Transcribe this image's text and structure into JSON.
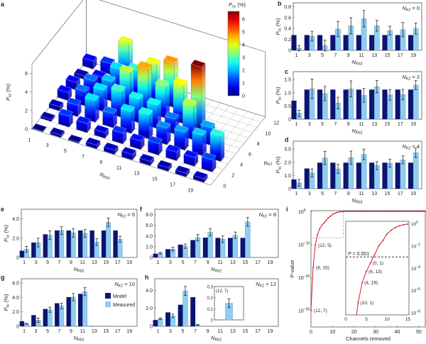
{
  "figure": {
    "panel_labels": [
      "a",
      "b",
      "c",
      "d",
      "e",
      "f",
      "g",
      "h",
      "i"
    ],
    "colors": {
      "model": "#0b1470",
      "measured": "#8fcdf2",
      "curve": "#d2202c",
      "axis": "#555555"
    }
  },
  "chart_data": [
    {
      "panel": "a",
      "type": "bar3d",
      "ylabel": {
        "base": "P",
        "sub": "sc",
        "suffix": " (%)"
      },
      "xlabel": {
        "base": "N",
        "sub": "Rb2"
      },
      "zlabel": {
        "base": "N",
        "sub": "K2"
      },
      "colorbar": {
        "title": {
          "base": "P",
          "sub": "sc",
          "suffix": " (%)"
        },
        "range": [
          0,
          6.6
        ],
        "ticks": [
          "0",
          "1",
          "2",
          "3",
          "4",
          "5",
          "6"
        ],
        "colormap": "jet"
      },
      "x_ticks": [
        "1",
        "3",
        "5",
        "7",
        "9",
        "11",
        "13",
        "15",
        "17",
        "19"
      ],
      "z_ticks": [
        "0",
        "2",
        "4",
        "6",
        "8",
        "10",
        "12"
      ],
      "y_ticks": [
        "0",
        "2",
        "4",
        "6"
      ],
      "x_values": [
        1,
        3,
        5,
        7,
        9,
        11,
        13,
        15,
        17,
        19
      ],
      "rows": [
        {
          "NK2": 0,
          "values": [
            0.04,
            0.26,
            0.09,
            0.39,
            0.45,
            0.58,
            0.45,
            0.36,
            0.38,
            0.4
          ]
        },
        {
          "NK2": 2,
          "values": [
            0.22,
            1.15,
            0.97,
            0.61,
            1.15,
            0.9,
            1.23,
            0.92,
            0.93,
            1.29
          ]
        },
        {
          "NK2": 4,
          "values": [
            0.45,
            1.2,
            2.33,
            1.5,
            2.35,
            2.6,
            1.75,
            1.92,
            2.18,
            2.72
          ]
        },
        {
          "NK2": 6,
          "values": [
            0.85,
            1.55,
            2.3,
            2.8,
            2.55,
            2.5,
            1.6,
            3.65,
            1.9,
            null
          ]
        },
        {
          "NK2": 8,
          "values": [
            0.8,
            1.55,
            2.1,
            3.7,
            4.7,
            3.4,
            4.15,
            6.65,
            null,
            null
          ]
        },
        {
          "NK2": 10,
          "values": [
            0.35,
            0.85,
            2.3,
            2.8,
            4.05,
            4.8,
            null,
            null,
            null,
            null
          ]
        },
        {
          "NK2": 12,
          "values": [
            0.85,
            1.15,
            3.95,
            0.15,
            null,
            null,
            null,
            null,
            null,
            null
          ]
        }
      ]
    },
    {
      "panel": "b",
      "type": "bar",
      "annotation": {
        "base": "N",
        "sub": "K2",
        "suffix": " = 0"
      },
      "ylabel": {
        "base": "P",
        "sub": "sc",
        "suffix": " (%)"
      },
      "xlabel": {
        "base": "N",
        "sub": "Rb2"
      },
      "categories": [
        1,
        3,
        5,
        7,
        9,
        11,
        13,
        15,
        17,
        19
      ],
      "ylim": [
        0,
        0.87
      ],
      "yticks": [
        "0",
        "0.2",
        "0.4",
        "0.6",
        "0.8"
      ],
      "series": [
        {
          "name": "Model",
          "values": [
            0.28,
            0.28,
            0.28,
            0.28,
            0.28,
            0.28,
            0.28,
            0.28,
            0.28,
            0.28
          ]
        },
        {
          "name": "Measured",
          "values": [
            0.04,
            0.26,
            0.09,
            0.39,
            0.45,
            0.58,
            0.45,
            0.36,
            0.38,
            0.4
          ],
          "errors": [
            0.05,
            0.09,
            0.1,
            0.14,
            0.15,
            0.15,
            0.1,
            0.08,
            0.13,
            0.1
          ]
        }
      ]
    },
    {
      "panel": "c",
      "type": "bar",
      "annotation": {
        "base": "N",
        "sub": "K2",
        "suffix": " = 2"
      },
      "ylabel": {
        "base": "P",
        "sub": "sc",
        "suffix": " (%)"
      },
      "xlabel": {
        "base": "N",
        "sub": "Rb2"
      },
      "categories": [
        1,
        3,
        5,
        7,
        9,
        11,
        13,
        15,
        17,
        19
      ],
      "ylim": [
        0,
        1.8
      ],
      "yticks": [
        "0",
        "0.5",
        "1.0",
        "1.5"
      ],
      "series": [
        {
          "name": "Model",
          "values": [
            0.7,
            1.12,
            1.12,
            1.12,
            1.12,
            1.12,
            1.12,
            1.12,
            1.12,
            1.12
          ]
        },
        {
          "name": "Measured",
          "values": [
            0.22,
            1.15,
            0.97,
            0.61,
            1.15,
            0.9,
            1.23,
            0.92,
            0.93,
            1.29
          ],
          "errors": [
            0.12,
            0.37,
            0.27,
            0.22,
            0.3,
            0.26,
            0.23,
            0.2,
            0.2,
            0.17
          ]
        }
      ]
    },
    {
      "panel": "d",
      "type": "bar",
      "annotation": {
        "base": "N",
        "sub": "K2",
        "suffix": " = 4"
      },
      "ylabel": {
        "base": "P",
        "sub": "sc",
        "suffix": " (%)"
      },
      "xlabel": {
        "base": "N",
        "sub": "Rb2"
      },
      "categories": [
        1,
        3,
        5,
        7,
        9,
        11,
        13,
        15,
        17,
        19
      ],
      "ylim": [
        0,
        3.6
      ],
      "yticks": [
        "0",
        "1.0",
        "2.0",
        "3.0"
      ],
      "series": [
        {
          "name": "Model",
          "values": [
            0.7,
            1.53,
            1.97,
            1.97,
            1.97,
            1.97,
            1.97,
            1.97,
            1.97,
            1.97
          ]
        },
        {
          "name": "Measured",
          "values": [
            0.45,
            1.2,
            2.33,
            1.5,
            2.35,
            2.6,
            1.75,
            1.92,
            2.18,
            2.72
          ],
          "errors": [
            0.25,
            0.3,
            0.5,
            0.35,
            0.5,
            0.4,
            0.3,
            0.3,
            0.3,
            0.35
          ]
        }
      ]
    },
    {
      "panel": "e",
      "type": "bar",
      "annotation": {
        "base": "N",
        "sub": "K2",
        "suffix": " = 6"
      },
      "ylabel": {
        "base": "P",
        "sub": "sc",
        "suffix": " (%)"
      },
      "xlabel": {
        "base": "N",
        "sub": "Rb2"
      },
      "categories": [
        1,
        3,
        5,
        7,
        9,
        11,
        13,
        15,
        17,
        19
      ],
      "ylim": [
        0,
        5
      ],
      "yticks": [
        "0",
        "2.0",
        "4.0"
      ],
      "series": [
        {
          "name": "Model",
          "values": [
            0.7,
            1.55,
            2.4,
            2.8,
            2.8,
            2.8,
            2.8,
            2.8,
            2.8,
            null
          ]
        },
        {
          "name": "Measured",
          "values": [
            0.85,
            1.55,
            2.3,
            2.8,
            2.55,
            2.5,
            1.6,
            3.65,
            1.9,
            null
          ],
          "errors": [
            0.3,
            0.45,
            0.45,
            0.4,
            0.45,
            0.4,
            0.35,
            0.45,
            0.3,
            null
          ]
        }
      ]
    },
    {
      "panel": "f",
      "type": "bar",
      "annotation": {
        "base": "N",
        "sub": "K2",
        "suffix": " = 8"
      },
      "ylabel": {
        "base": "",
        "sub": "",
        "suffix": ""
      },
      "xlabel": {
        "base": "N",
        "sub": "Rb2"
      },
      "categories": [
        1,
        3,
        5,
        7,
        9,
        11,
        13,
        15,
        17,
        19
      ],
      "ylim": [
        0,
        9
      ],
      "yticks": [
        "0",
        "2.0",
        "4.0",
        "6.0",
        "8.0"
      ],
      "series": [
        {
          "name": "Model",
          "values": [
            0.7,
            1.55,
            2.4,
            3.25,
            3.7,
            3.65,
            3.65,
            3.65,
            null,
            null
          ]
        },
        {
          "name": "Measured",
          "values": [
            0.8,
            1.55,
            2.1,
            3.7,
            4.7,
            3.4,
            4.15,
            6.65,
            null,
            null
          ],
          "errors": [
            0.15,
            0.35,
            0.4,
            0.6,
            0.7,
            0.6,
            0.6,
            0.8,
            null,
            null
          ]
        }
      ]
    },
    {
      "panel": "g",
      "type": "bar",
      "annotation": {
        "base": "N",
        "sub": "K2",
        "suffix": " = 10"
      },
      "ylabel": {
        "base": "P",
        "sub": "sc",
        "suffix": " (%)"
      },
      "xlabel": {
        "base": "N",
        "sub": "Rb2"
      },
      "legend": {
        "position": "right",
        "entries": [
          "Model",
          "Measured"
        ]
      },
      "categories": [
        1,
        3,
        5,
        7,
        9,
        11,
        13,
        15,
        17,
        19
      ],
      "ylim": [
        0,
        6.6
      ],
      "yticks": [
        "0",
        "2.0",
        "4.0",
        "6.0"
      ],
      "series": [
        {
          "name": "Model",
          "values": [
            0.7,
            1.55,
            2.4,
            3.2,
            4.05,
            4.5,
            0.03,
            0.02,
            null,
            null
          ]
        },
        {
          "name": "Measured",
          "values": [
            0.35,
            0.85,
            2.3,
            2.8,
            4.05,
            4.8,
            null,
            null,
            null,
            null
          ],
          "errors": [
            0.05,
            0.3,
            0.35,
            0.4,
            0.5,
            0.55,
            null,
            null,
            null,
            null
          ]
        }
      ]
    },
    {
      "panel": "h",
      "type": "bar",
      "annotation": {
        "base": "N",
        "sub": "K2",
        "suffix": " = 12"
      },
      "ylabel": {
        "base": "",
        "sub": "",
        "suffix": ""
      },
      "xlabel": {
        "base": "N",
        "sub": "Rb2"
      },
      "categories": [
        1,
        3,
        5,
        7,
        9,
        11,
        13,
        15,
        17,
        19
      ],
      "ylim": [
        0,
        5.3
      ],
      "yticks": [
        "0",
        "2.0",
        "4.0"
      ],
      "series": [
        {
          "name": "Model",
          "values": [
            0.7,
            1.55,
            2.4,
            3.25,
            null,
            null,
            null,
            null,
            null,
            null
          ]
        },
        {
          "name": "Measured",
          "values": [
            0.85,
            1.15,
            3.95,
            0.15,
            null,
            null,
            null,
            null,
            null,
            null
          ],
          "errors": [
            0.1,
            0.2,
            0.5,
            0.05,
            null,
            null,
            null,
            null,
            null,
            null
          ]
        }
      ],
      "inset": {
        "label": "(12, 7)",
        "value": 0.15,
        "error": 0.04,
        "ylim": [
          0,
          0.3
        ],
        "yticks": [
          "0",
          "0.1",
          "0.2",
          "0.3"
        ]
      }
    },
    {
      "panel": "i",
      "type": "line",
      "yscale": "log",
      "xlabel": "Channels removed",
      "ylabel": "P-value",
      "xlim": [
        0,
        53
      ],
      "xticks": [
        "0",
        "10",
        "20",
        "30",
        "40",
        "50"
      ],
      "ylim": [
        1e-35,
        1.6
      ],
      "yticks": [
        {
          "base": "10",
          "exp": "0"
        },
        {
          "base": "10",
          "exp": "−10"
        },
        {
          "base": "10",
          "exp": "−20"
        },
        {
          "base": "10",
          "exp": "−30"
        }
      ],
      "x": [
        0,
        1,
        2,
        3,
        4,
        5,
        6,
        7,
        8,
        9,
        10,
        11,
        12,
        13,
        14,
        15,
        16,
        17,
        18,
        19,
        20,
        21,
        22,
        23,
        24,
        25,
        26,
        27,
        28,
        29,
        30,
        31,
        32,
        33,
        34,
        35,
        36,
        37,
        38,
        39,
        40,
        41,
        42,
        43,
        44,
        45,
        46,
        47,
        48,
        49,
        50,
        51,
        52,
        53
      ],
      "y": [
        1e-30,
        1e-17,
        6e-11,
        8e-08,
        5e-06,
        5e-05,
        0.0003,
        0.0016,
        0.01,
        0.03,
        0.12,
        0.25,
        0.45,
        0.63,
        0.8,
        0.9,
        0.95,
        0.97,
        0.98,
        0.99,
        0.99,
        0.99,
        1,
        1,
        1,
        1,
        1,
        1,
        1,
        1,
        1,
        1,
        1,
        1,
        1,
        1,
        1,
        1,
        1,
        1,
        1,
        1,
        1,
        1,
        1,
        1,
        1,
        1,
        1,
        1,
        1,
        1,
        1,
        1
      ],
      "annotations": [
        {
          "x": 0,
          "label": "(12, 7)"
        },
        {
          "x": 1,
          "label": "(8, 15)"
        },
        {
          "x": 2,
          "label": "(12, 5)"
        }
      ],
      "inset": {
        "xlim": [
          0,
          15.3
        ],
        "xticks": [
          "0",
          "5",
          "10",
          "15"
        ],
        "ylim": [
          6e-09,
          1.6
        ],
        "yticks": [
          {
            "base": "10",
            "exp": "0"
          },
          {
            "base": "10",
            "exp": "−2"
          },
          {
            "base": "10",
            "exp": "−4"
          },
          {
            "base": "10",
            "exp": "−6"
          },
          {
            "base": "10",
            "exp": "−8"
          }
        ],
        "threshold": {
          "value": 0.001,
          "label": "P = 0.001"
        },
        "annotations": [
          {
            "x": 3,
            "label": "(10, 1)"
          },
          {
            "x": 4,
            "label": "(4, 19)"
          },
          {
            "x": 5,
            "label": "(6, 13)"
          },
          {
            "x": 6,
            "label": "(0, 1)"
          }
        ]
      }
    }
  ]
}
